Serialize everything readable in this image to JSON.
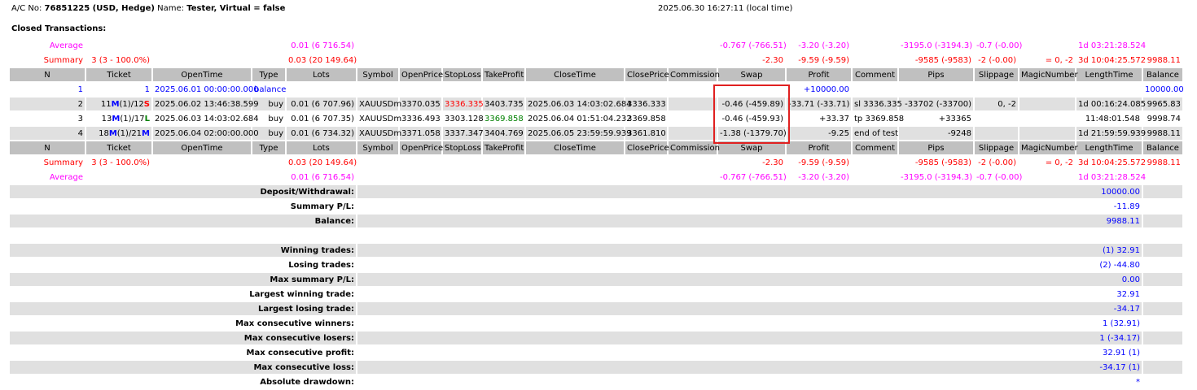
{
  "header": {
    "ac_label": "A/C No:",
    "ac_value": "76851225 (USD, Hedge)",
    "name_label": "Name:",
    "name_value": "Tester, Virtual = false",
    "time": "2025.06.30 16:27:11 (local time)"
  },
  "section_title": "Closed Transactions:",
  "columns": [
    "N",
    "Ticket",
    "OpenTime",
    "Type",
    "Lots",
    "Symbol",
    "OpenPrice",
    "StopLoss",
    "TakeProfit",
    "CloseTime",
    "ClosePrice",
    "Commission",
    "Swap",
    "Profit",
    "Comment",
    "Pips",
    "Slippage",
    "MagicNumber",
    "LengthTime",
    "Balance"
  ],
  "average": {
    "label": "Average",
    "lots": "0.01 (6 716.54)",
    "swap": "-0.767 (-766.51)",
    "profit": "-3.20 (-3.20)",
    "pips": "-3195.0 (-3194.3)",
    "slippage": "-0.7 (-0.00)",
    "length": "1d 03:21:28.524"
  },
  "summary": {
    "label": "Summary",
    "ticket": "3 (3 - 100.0%)",
    "lots": "0.03 (20 149.64)",
    "swap": "-2.30",
    "profit": "-9.59 (-9.59)",
    "pips": "-9585 (-9583)",
    "slippage": "-2 (-0.00)",
    "magic": "= 0, -2",
    "length": "3d 10:04:25.572",
    "balance": "9988.11"
  },
  "rows": [
    {
      "n": "1",
      "ticket": {
        "a": "1",
        "b": "",
        "c": "",
        "d": ""
      },
      "open_time": "2025.06.01 00:00:00.000",
      "type": "balance",
      "lots": "",
      "symbol": "",
      "open_price": "",
      "stop_loss": "",
      "take_profit": "",
      "close_time": "",
      "close_price": "",
      "commission": "",
      "swap": "",
      "profit": "+10000.00",
      "comment": "",
      "pips": "",
      "slippage": "",
      "magic": "",
      "length": "",
      "balance": "10000.00"
    },
    {
      "n": "2",
      "ticket": {
        "a": "11",
        "b": "M",
        "c": "(1)/12",
        "d": "S"
      },
      "open_time": "2025.06.02 13:46:38.599",
      "type": "buy",
      "lots": "0.01 (6 707.96)",
      "symbol": "XAUUSDm",
      "open_price": "3370.035",
      "stop_loss": "3336.335",
      "take_profit": "3403.735",
      "close_time": "2025.06.03 14:03:02.684",
      "close_price": "3336.333",
      "commission": "",
      "swap": "-0.46 (-459.89)",
      "profit": "-33.71 (-33.71)",
      "comment": "sl 3336.335",
      "pips": "-33702 (-33700)",
      "slippage": "0, -2",
      "magic": "",
      "length": "1d 00:16:24.085",
      "balance": "9965.83"
    },
    {
      "n": "3",
      "ticket": {
        "a": "13",
        "b": "M",
        "c": "(1)/17",
        "d": "L"
      },
      "open_time": "2025.06.03 14:03:02.684",
      "type": "buy",
      "lots": "0.01 (6 707.35)",
      "symbol": "XAUUSDm",
      "open_price": "3336.493",
      "stop_loss": "3303.128",
      "take_profit": "3369.858",
      "close_time": "2025.06.04 01:51:04.232",
      "close_price": "3369.858",
      "commission": "",
      "swap": "-0.46 (-459.93)",
      "profit": "+33.37",
      "comment": "tp 3369.858",
      "pips": "+33365",
      "slippage": "",
      "magic": "",
      "length": "11:48:01.548",
      "balance": "9998.74"
    },
    {
      "n": "4",
      "ticket": {
        "a": "18",
        "b": "M",
        "c": "(1)/21",
        "d": "M"
      },
      "open_time": "2025.06.04 02:00:00.000",
      "type": "buy",
      "lots": "0.01 (6 734.32)",
      "symbol": "XAUUSDm",
      "open_price": "3371.058",
      "stop_loss": "3337.347",
      "take_profit": "3404.769",
      "close_time": "2025.06.05 23:59:59.939",
      "close_price": "3361.810",
      "commission": "",
      "swap": "-1.38 (-1379.70)",
      "profit": "-9.25",
      "comment": "end of test",
      "pips": "-9248",
      "slippage": "",
      "magic": "",
      "length": "1d 21:59:59.939",
      "balance": "9988.11"
    }
  ],
  "tag_colors": {
    "M": "#0000ff",
    "S": "#ff0000",
    "L": "#008000"
  },
  "stats": [
    {
      "label": "Deposit/Withdrawal:",
      "value": "10000.00"
    },
    {
      "label": "Summary P/L:",
      "value": "-11.89"
    },
    {
      "label": "Balance:",
      "value": "9988.11"
    },
    {
      "label": "",
      "value": ""
    },
    {
      "label": "Winning trades:",
      "value": "(1) 32.91"
    },
    {
      "label": "Losing trades:",
      "value": "(2) -44.80"
    },
    {
      "label": "Max summary P/L:",
      "value": "0.00"
    },
    {
      "label": "Largest winning trade:",
      "value": "32.91"
    },
    {
      "label": "Largest losing trade:",
      "value": "-34.17"
    },
    {
      "label": "Max consecutive winners:",
      "value": "1 (32.91)"
    },
    {
      "label": "Max consecutive losers:",
      "value": "1 (-34.17)"
    },
    {
      "label": "Max consecutive profit:",
      "value": "32.91 (1)"
    },
    {
      "label": "Max consecutive loss:",
      "value": "-34.17 (1)"
    },
    {
      "label": "Absolute drawdown:",
      "value": "*"
    }
  ]
}
